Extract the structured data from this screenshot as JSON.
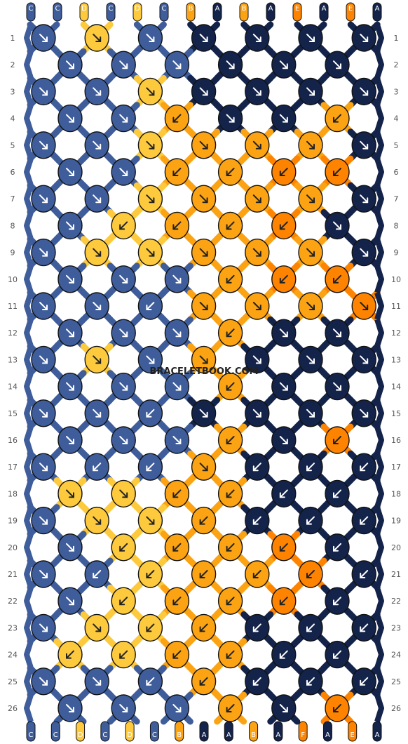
{
  "watermark": "BRACELETBOOK.COM",
  "colors": {
    "A": "#13234a",
    "B": "#fba313",
    "C": "#3e5d9a",
    "D": "#fdca3e",
    "E": "#fd8300",
    "F": "#fd8300"
  },
  "top_strings": [
    "C",
    "C",
    "D",
    "C",
    "D",
    "C",
    "B",
    "A",
    "B",
    "A",
    "E",
    "A",
    "E",
    "A"
  ],
  "bottom_strings": [
    "C",
    "C",
    "D",
    "C",
    "D",
    "C",
    "B",
    "A",
    "A",
    "B",
    "A",
    "F",
    "A",
    "E",
    "A"
  ],
  "row_numbers": [
    "1",
    "2",
    "3",
    "4",
    "5",
    "6",
    "7",
    "8",
    "9",
    "10",
    "11",
    "12",
    "13",
    "14",
    "15",
    "16",
    "17",
    "18",
    "19",
    "20",
    "21",
    "22",
    "23",
    "24",
    "25",
    "26"
  ],
  "rows": [
    "C>D>C>A>A>A>A>",
    "C>C>C>A>A>A>",
    "C>C>D>A>A>A>A>",
    "C>C>B<A>A>B<",
    "C>C>D>B>B>B>A>",
    "C>C>B<B<E<E<",
    "C>C>D>B>B>B>A>",
    "C>D<B<B<E<A>",
    "C>D>D>B>B>B>A>",
    "C>C>C>B<E<E<",
    "C>C>C<B>B>B>E>",
    "C>C>C>B<A>A>",
    "C>D>C>B>A>A>A>",
    "C>C>C>B<A>A>",
    "C>C>C<A>A>A>A>",
    "C>C>C>B<A>E<",
    "C>C<C<B>A<A<A<",
    "D>D>B<B<A<A<",
    "C>D>D>B<A<A<A<",
    "C>D<B<B<E<A<",
    "C>C<D<B<B<E<A<",
    "C>D<B<B<E<A<",
    "C>D>D<B<A<A<A<",
    "D<D<B<B<A<A<",
    "C>C>C<B<A<A<A<",
    "C>C>C>B<A>E<"
  ]
}
